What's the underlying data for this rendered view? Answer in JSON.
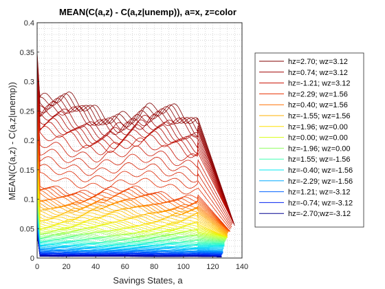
{
  "chart_data": {
    "type": "line",
    "title": "MEAN(C(a,z) - C(a,z|unemp)), a=x, z=color",
    "xlabel": "Savings States, a",
    "ylabel": "MEAN(C(a,z) - C(a,z|unemp))",
    "xlim": [
      0,
      140
    ],
    "ylim": [
      0,
      0.4
    ],
    "xticks": [
      0,
      20,
      40,
      60,
      80,
      100,
      120,
      140
    ],
    "yticks": [
      0,
      0.05,
      0.1,
      0.15,
      0.2,
      0.25,
      0.3,
      0.35,
      0.4
    ],
    "xtick_labels": [
      "0",
      "20",
      "40",
      "60",
      "80",
      "100",
      "120",
      "140"
    ],
    "ytick_labels": [
      "0",
      "0.05",
      "0.1",
      "0.15",
      "0.2",
      "0.25",
      "0.3",
      "0.35",
      "0.4"
    ],
    "grid": "minor dotted",
    "legend_position": "outside-right",
    "series": [
      {
        "name": "hz=2.70; wz=3.12",
        "color": "#800000",
        "start": 0.35,
        "level": 0.265,
        "end": 0.055,
        "x_end": 135
      },
      {
        "name": "hz=0.74; wz=3.12",
        "color": "#a00000",
        "start": 0.33,
        "level": 0.24,
        "end": 0.06,
        "x_end": 134
      },
      {
        "name": "hz=-1.21; wz=3.12",
        "color": "#c81000",
        "start": 0.3,
        "level": 0.2,
        "end": 0.06,
        "x_end": 134
      },
      {
        "name": "hz=2.29; wz=1.56",
        "color": "#e83000",
        "start": 0.26,
        "level": 0.12,
        "end": 0.045,
        "x_end": 132
      },
      {
        "name": "hz=0.40; wz=1.56",
        "color": "#ff7000",
        "start": 0.22,
        "level": 0.1,
        "end": 0.045,
        "x_end": 131
      },
      {
        "name": "hz=-1.55; wz=1.56",
        "color": "#ffb000",
        "start": 0.19,
        "level": 0.085,
        "end": 0.04,
        "x_end": 130
      },
      {
        "name": "hz=1.96; wz=0.00",
        "color": "#ffe000",
        "start": 0.15,
        "level": 0.065,
        "end": 0.035,
        "x_end": 130
      },
      {
        "name": "hz=0.00; wz=0.00",
        "color": "#d8ff10",
        "start": 0.12,
        "level": 0.05,
        "end": 0.035,
        "x_end": 130
      },
      {
        "name": "hz=-1.96; wz=0.00",
        "color": "#90ff60",
        "start": 0.1,
        "level": 0.04,
        "end": 0.03,
        "x_end": 129
      },
      {
        "name": "hz=1.55; wz=-1.56",
        "color": "#40ffb0",
        "start": 0.09,
        "level": 0.03,
        "end": 0.025,
        "x_end": 128
      },
      {
        "name": "hz=-0.40; wz=-1.56",
        "color": "#00e8f0",
        "start": 0.08,
        "level": 0.022,
        "end": 0.02,
        "x_end": 128
      },
      {
        "name": "hz=-2.29; wz=-1.56",
        "color": "#00a8ff",
        "start": 0.07,
        "level": 0.015,
        "end": 0.012,
        "x_end": 127
      },
      {
        "name": "hz=1.21; wz=-3.12",
        "color": "#0060ff",
        "start": 0.06,
        "level": 0.01,
        "end": 0.008,
        "x_end": 127
      },
      {
        "name": "hz=-0.74; wz=-3.12",
        "color": "#0020f0",
        "start": 0.05,
        "level": 0.006,
        "end": 0.004,
        "x_end": 126
      },
      {
        "name": "hz=-2.70;wz=-3.12",
        "color": "#000090",
        "start": 0.04,
        "level": 0.003,
        "end": 0.002,
        "x_end": 126
      }
    ]
  }
}
